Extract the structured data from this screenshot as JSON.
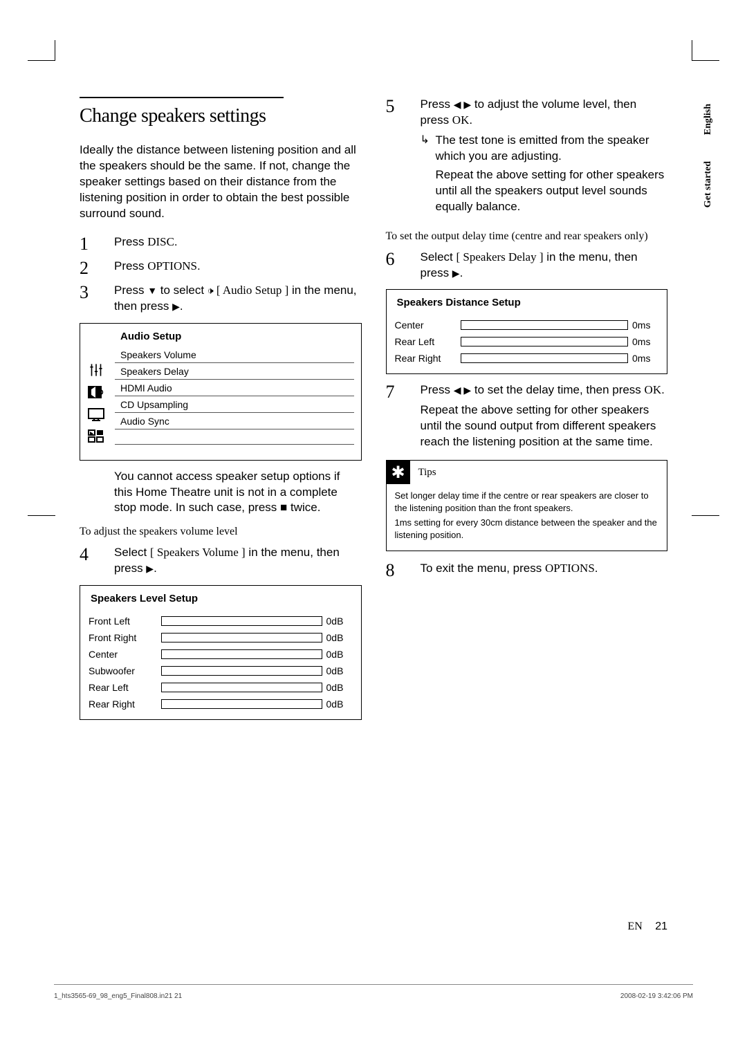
{
  "title": "Change speakers settings",
  "intro": "Ideally the distance between listening position and all the speakers should be the same.  If not, change the speaker settings based on their distance from the listening position in order to obtain the best possible surround sound.",
  "steps_left": {
    "s1": {
      "num": "1",
      "text_a": "Press ",
      "bold": "DISC",
      "text_b": "."
    },
    "s2": {
      "num": "2",
      "text_a": "Press ",
      "bold": "OPTIONS",
      "text_b": "."
    },
    "s3": {
      "num": "3",
      "text_a": "Press ",
      "icon1": "▼",
      "text_b": " to select ",
      "icon2": "🔊",
      "bold": " [ Audio Setup ]",
      "text_c": " in the menu, then press ",
      "icon3": "▶",
      "text_d": "."
    },
    "s3_note": "You cannot access speaker setup options if this Home Theatre unit is not in a complete stop mode.  In such case, press ■ twice.",
    "sub4": "To adjust the speakers volume level",
    "s4": {
      "num": "4",
      "text_a": "Select ",
      "bold": "[ Speakers Volume ]",
      "text_b": " in the menu, then press ",
      "icon": "▶",
      "text_c": "."
    }
  },
  "audio_menu": {
    "header": "Audio Setup",
    "items": [
      "Speakers Volume",
      "Speakers Delay",
      "HDMI Audio",
      "CD Upsampling",
      "Audio Sync"
    ]
  },
  "level_box": {
    "header": "Speakers Level Setup",
    "rows": [
      {
        "label": "Front Left",
        "val": "0dB"
      },
      {
        "label": "Front Right",
        "val": "0dB"
      },
      {
        "label": "Center",
        "val": "0dB"
      },
      {
        "label": "Subwoofer",
        "val": "0dB"
      },
      {
        "label": "Rear Left",
        "val": "0dB"
      },
      {
        "label": "Rear Right",
        "val": "0dB"
      }
    ]
  },
  "steps_right": {
    "s5": {
      "num": "5",
      "text_a": "Press ",
      "icon1": "◀ ▶",
      "text_b": " to adjust the volume level, then press ",
      "bold": "OK",
      "text_c": "."
    },
    "s5_sub1": "The test tone is emitted from the speaker which you are adjusting.",
    "s5_sub2": "Repeat the above setting for other speakers until all the speakers output level sounds equally balance.",
    "sub6": "To set the output delay time (centre and rear speakers only)",
    "s6": {
      "num": "6",
      "text_a": "Select ",
      "bold": "[ Speakers Delay ]",
      "text_b": " in the menu, then press ",
      "icon": "▶",
      "text_c": "."
    },
    "s7": {
      "num": "7",
      "text_a": "Press ",
      "icon1": "◀ ▶",
      "text_b": " to set the delay time, then press ",
      "bold": "OK",
      "text_c": "."
    },
    "s7_sub": "Repeat the above setting for other speakers until the sound output from different speakers reach the listening position at the same time.",
    "s8": {
      "num": "8",
      "text_a": "To exit the menu, press ",
      "bold": "OPTIONS",
      "text_b": "."
    }
  },
  "dist_box": {
    "header": "Speakers Distance Setup",
    "rows": [
      {
        "label": "Center",
        "val": "0ms"
      },
      {
        "label": "Rear Left",
        "val": "0ms"
      },
      {
        "label": "Rear Right",
        "val": "0ms"
      }
    ]
  },
  "tips": {
    "label": "Tips",
    "p1": "Set longer delay time if the centre or rear speakers are closer to the listening position than the front speakers.",
    "p2": "1ms setting for every 30cm distance between the speaker and the listening position."
  },
  "side": {
    "t1": "English",
    "t2": "Get started"
  },
  "footer": {
    "en": "EN",
    "page": "21"
  },
  "meta": {
    "left": "1_hts3565-69_98_eng5_Final808.in21   21",
    "right": "2008-02-19   3:42:06 PM"
  }
}
